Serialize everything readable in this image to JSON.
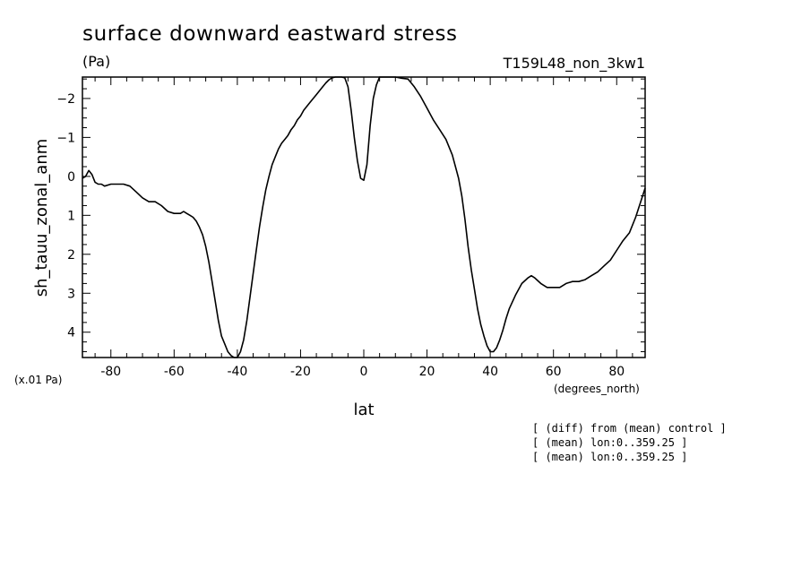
{
  "chart_data": {
    "type": "line",
    "title": "surface downward eastward stress",
    "units": "(Pa)",
    "experiment": "T159L48_non_3kw1",
    "xlabel": "lat",
    "xunits": "(degrees_north)",
    "ylabel": "sh_tauu_zonal_anm",
    "yscale_note": "(x.01 Pa)",
    "xlim": [
      -89,
      89
    ],
    "ylim": [
      4.65,
      -2.55
    ],
    "y_inverted": true,
    "grid": false,
    "xticks": [
      -80,
      -60,
      -40,
      -20,
      0,
      20,
      40,
      60,
      80
    ],
    "xtick_labels": [
      "-80",
      "-60",
      "-40",
      "-20",
      "0",
      "20",
      "40",
      "60",
      "80"
    ],
    "yticks": [
      -2,
      -1,
      0,
      1,
      2,
      3,
      4
    ],
    "ytick_labels": [
      "-2",
      "-1",
      "0",
      "1",
      "2",
      "3",
      "4"
    ],
    "series": [
      {
        "color": "#000000",
        "x": [
          -89,
          -88,
          -87,
          -86,
          -85,
          -84,
          -83,
          -82,
          -80,
          -78,
          -76,
          -74,
          -72,
          -70,
          -68,
          -66,
          -64,
          -62,
          -60,
          -58,
          -57,
          -56,
          -55,
          -54,
          -53,
          -52,
          -51,
          -50,
          -49,
          -48,
          -47,
          -46,
          -45,
          -44,
          -43,
          -42,
          -41,
          -40,
          -39,
          -38,
          -37,
          -36,
          -35,
          -34,
          -33,
          -32,
          -31,
          -30,
          -29,
          -28,
          -27,
          -26,
          -25,
          -24,
          -23,
          -22,
          -21,
          -20,
          -19,
          -18,
          -17,
          -16,
          -15,
          -14,
          -13,
          -12,
          -11,
          -10,
          -9,
          -8,
          -7,
          -6,
          -5,
          -4,
          -3,
          -2,
          -1,
          0,
          1,
          2,
          3,
          4,
          5,
          6,
          7,
          8,
          10,
          12,
          14,
          16,
          18,
          20,
          22,
          24,
          26,
          28,
          30,
          31,
          32,
          33,
          34,
          35,
          36,
          37,
          38,
          39,
          40,
          41,
          42,
          43,
          44,
          45,
          46,
          48,
          50,
          52,
          53,
          54,
          56,
          58,
          60,
          62,
          64,
          66,
          68,
          70,
          72,
          74,
          76,
          78,
          80,
          82,
          84,
          86,
          88,
          89
        ],
        "y": [
          0.05,
          0.0,
          -0.15,
          -0.05,
          0.15,
          0.2,
          0.2,
          0.25,
          0.2,
          0.2,
          0.2,
          0.25,
          0.4,
          0.55,
          0.65,
          0.65,
          0.75,
          0.9,
          0.95,
          0.95,
          0.9,
          0.95,
          1.0,
          1.05,
          1.15,
          1.3,
          1.5,
          1.8,
          2.2,
          2.7,
          3.2,
          3.7,
          4.1,
          4.3,
          4.5,
          4.6,
          4.65,
          4.65,
          4.5,
          4.2,
          3.7,
          3.1,
          2.5,
          1.9,
          1.3,
          0.8,
          0.35,
          0.0,
          -0.3,
          -0.5,
          -0.7,
          -0.85,
          -0.95,
          -1.05,
          -1.2,
          -1.3,
          -1.45,
          -1.55,
          -1.7,
          -1.8,
          -1.9,
          -2.0,
          -2.1,
          -2.2,
          -2.3,
          -2.4,
          -2.48,
          -2.53,
          -2.55,
          -2.55,
          -2.55,
          -2.53,
          -2.3,
          -1.7,
          -1.0,
          -0.4,
          0.05,
          0.1,
          -0.3,
          -1.3,
          -2.0,
          -2.35,
          -2.55,
          -2.55,
          -2.55,
          -2.55,
          -2.55,
          -2.52,
          -2.5,
          -2.3,
          -2.05,
          -1.75,
          -1.45,
          -1.2,
          -0.95,
          -0.55,
          0.05,
          0.5,
          1.1,
          1.8,
          2.4,
          2.9,
          3.4,
          3.8,
          4.1,
          4.35,
          4.5,
          4.5,
          4.4,
          4.2,
          3.95,
          3.65,
          3.4,
          3.05,
          2.75,
          2.6,
          2.55,
          2.6,
          2.75,
          2.85,
          2.85,
          2.85,
          2.75,
          2.7,
          2.7,
          2.65,
          2.55,
          2.45,
          2.3,
          2.15,
          1.9,
          1.65,
          1.45,
          1.05,
          0.55,
          0.3
        ]
      }
    ],
    "notes": [
      "[ (diff) from (mean) control ]",
      "[ (mean) lon:0..359.25 ]",
      "[ (mean) lon:0..359.25 ]"
    ]
  }
}
